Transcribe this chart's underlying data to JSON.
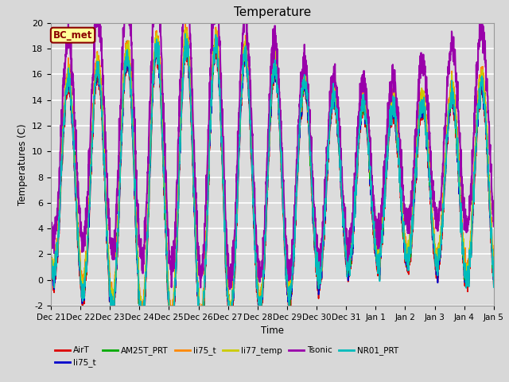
{
  "title": "Temperature",
  "ylabel": "Temperatures (C)",
  "xlabel": "Time",
  "ylim": [
    -2,
    20
  ],
  "annotation_text": "BC_met",
  "annotation_color": "#8B0000",
  "annotation_bg": "#FFFF99",
  "series": {
    "AirT": {
      "color": "#DD0000",
      "lw": 1.2
    },
    "li75_t": {
      "color": "#0000CC",
      "lw": 1.2
    },
    "AM25T_PRT": {
      "color": "#00AA00",
      "lw": 1.2
    },
    "li75_t2": {
      "color": "#FF8800",
      "lw": 1.2
    },
    "li77_temp": {
      "color": "#CCCC00",
      "lw": 1.2
    },
    "Tsonic": {
      "color": "#9900AA",
      "lw": 1.5
    },
    "NR01_PRT": {
      "color": "#00BBBB",
      "lw": 1.2
    }
  },
  "xtick_labels": [
    "Dec 21",
    "Dec 22",
    "Dec 23",
    "Dec 24",
    "Dec 25",
    "Dec 26",
    "Dec 27",
    "Dec 28",
    "Dec 29",
    "Dec 30",
    "Dec 31",
    "Jan 1",
    "Jan 2",
    "Jan 3",
    "Jan 4",
    "Jan 5"
  ],
  "yticks": [
    -2,
    0,
    2,
    4,
    6,
    8,
    10,
    12,
    14,
    16,
    18,
    20
  ],
  "n_days": 15,
  "ppd": 144
}
